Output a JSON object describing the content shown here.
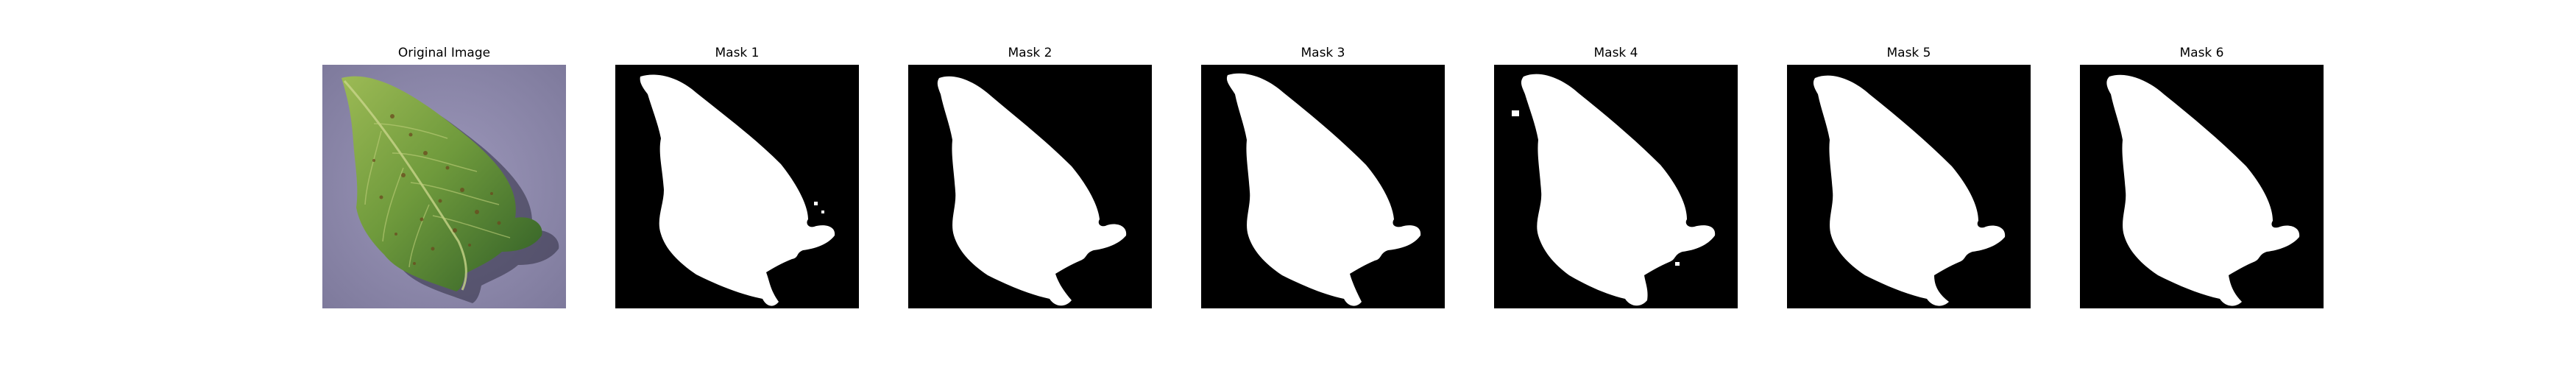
{
  "panels": [
    {
      "title": "Original Image",
      "kind": "photo"
    },
    {
      "title": "Mask 1",
      "kind": "mask"
    },
    {
      "title": "Mask 2",
      "kind": "mask"
    },
    {
      "title": "Mask 3",
      "kind": "mask"
    },
    {
      "title": "Mask 4",
      "kind": "mask"
    },
    {
      "title": "Mask 5",
      "kind": "mask"
    },
    {
      "title": "Mask 6",
      "kind": "mask"
    }
  ],
  "colors": {
    "background": "#ffffff",
    "mask_background": "#000000",
    "mask_foreground": "#ffffff",
    "photo_background": "#8d88ad",
    "leaf_light": "#8fb04a",
    "leaf_dark": "#3f6d2b",
    "leaf_shadow": "#2e2c40",
    "spot_color": "#6b4a1e"
  },
  "icons": {
    "photo": "leaf-photo",
    "mask": "binary-leaf-mask"
  }
}
